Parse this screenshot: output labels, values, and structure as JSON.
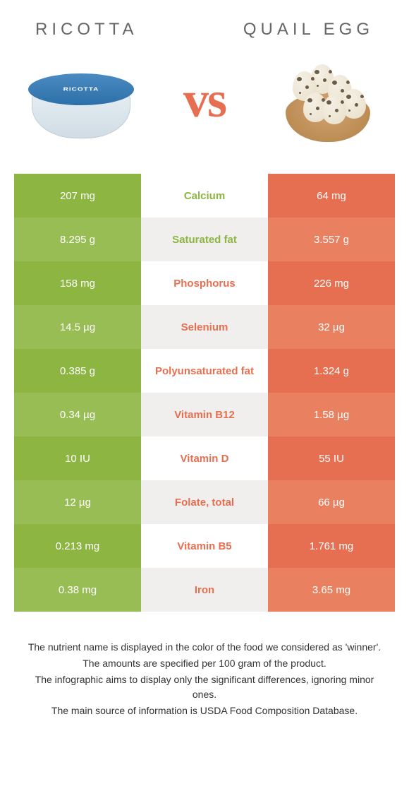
{
  "header": {
    "left_title": "Ricotta",
    "right_title": "Quail egg"
  },
  "vs_label": "vs",
  "ricotta_label": "RICOTTA",
  "colors": {
    "green": "#8cb542",
    "green_alt": "#99bd55",
    "orange": "#e76f51",
    "orange_alt": "#e98060",
    "text_dark": "#333333",
    "header_grey": "#666666"
  },
  "rows": [
    {
      "nutrient": "Calcium",
      "left": "207 mg",
      "right": "64 mg",
      "winner": "left"
    },
    {
      "nutrient": "Saturated fat",
      "left": "8.295 g",
      "right": "3.557 g",
      "winner": "left"
    },
    {
      "nutrient": "Phosphorus",
      "left": "158 mg",
      "right": "226 mg",
      "winner": "right"
    },
    {
      "nutrient": "Selenium",
      "left": "14.5 µg",
      "right": "32 µg",
      "winner": "right"
    },
    {
      "nutrient": "Polyunsaturated fat",
      "left": "0.385 g",
      "right": "1.324 g",
      "winner": "right"
    },
    {
      "nutrient": "Vitamin B12",
      "left": "0.34 µg",
      "right": "1.58 µg",
      "winner": "right"
    },
    {
      "nutrient": "Vitamin D",
      "left": "10 IU",
      "right": "55 IU",
      "winner": "right"
    },
    {
      "nutrient": "Folate, total",
      "left": "12 µg",
      "right": "66 µg",
      "winner": "right"
    },
    {
      "nutrient": "Vitamin B5",
      "left": "0.213 mg",
      "right": "1.761 mg",
      "winner": "right"
    },
    {
      "nutrient": "Iron",
      "left": "0.38 mg",
      "right": "3.65 mg",
      "winner": "right"
    }
  ],
  "footnotes": [
    "The nutrient name is displayed in the color of the food we considered as 'winner'.",
    "The amounts are specified per 100 gram of the product.",
    "The infographic aims to display only the significant differences, ignoring minor ones.",
    "The main source of information is USDA Food Composition Database."
  ]
}
